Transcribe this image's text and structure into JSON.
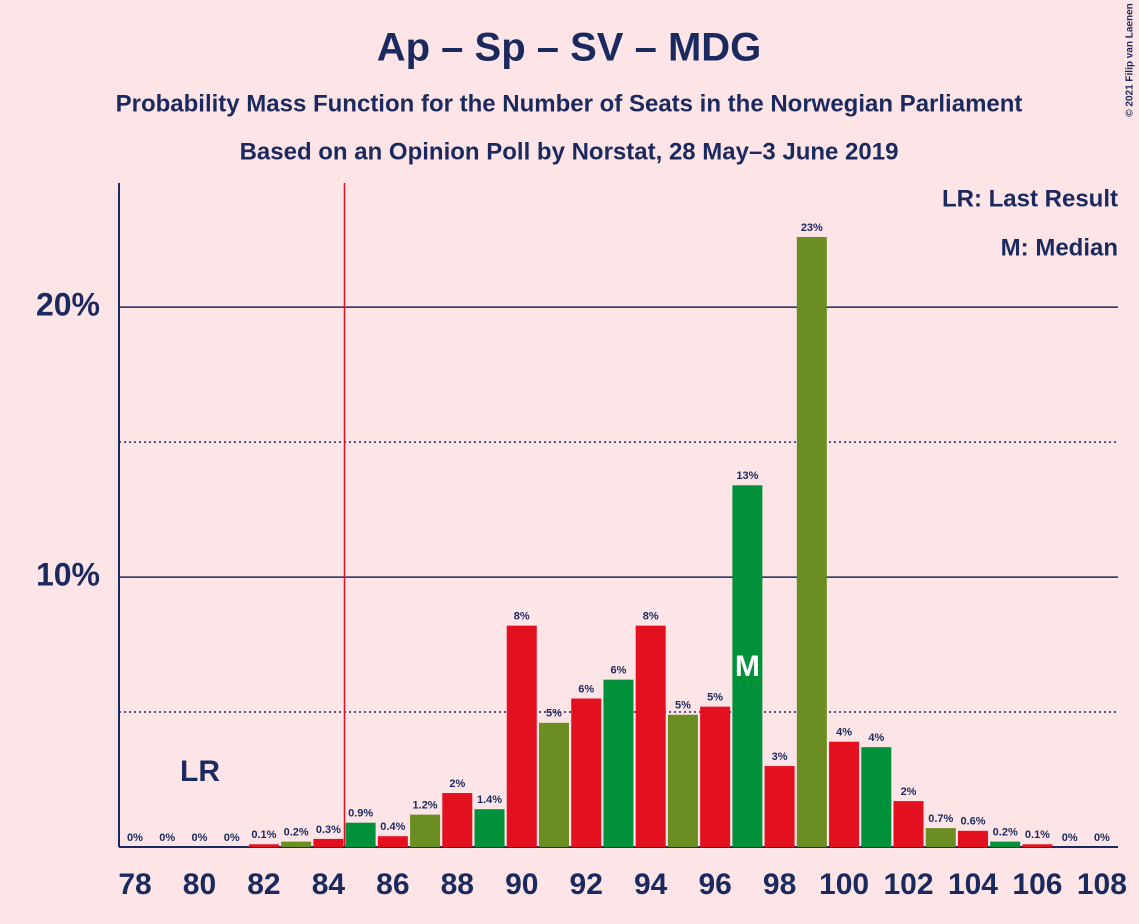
{
  "chart_data": {
    "type": "bar",
    "title": "Ap – Sp – SV – MDG",
    "subtitle": "Probability Mass Function for the Number of Seats in the Norwegian Parliament",
    "subtitle2": "Based on an Opinion Poll by Norstat, 28 May–3 June 2019",
    "copyright": "© 2021 Filip van Laenen",
    "categories": [
      78,
      null,
      80,
      null,
      82,
      null,
      84,
      null,
      86,
      null,
      88,
      null,
      90,
      null,
      92,
      null,
      94,
      null,
      96,
      null,
      98,
      null,
      100,
      null,
      102,
      null,
      104,
      null,
      106,
      null,
      108
    ],
    "values": [
      0,
      0,
      0,
      0,
      0.1,
      0.2,
      0.3,
      0.9,
      0.4,
      1.2,
      2.0,
      1.4,
      8.2,
      4.6,
      5.5,
      6.2,
      8.2,
      4.9,
      5.2,
      13.4,
      3.0,
      22.6,
      3.9,
      3.7,
      1.7,
      0.7,
      0.6,
      0.2,
      0.1,
      0,
      0
    ],
    "value_labels": [
      "0%",
      "0%",
      "0%",
      "0%",
      "0.1%",
      "0.2%",
      "0.3%",
      "0.9%",
      "0.4%",
      "1.2%",
      "2%",
      "1.4%",
      "8%",
      "5%",
      "6%",
      "6%",
      "8%",
      "5%",
      "5%",
      "13%",
      "3%",
      "23%",
      "4%",
      "4%",
      "2%",
      "0.7%",
      "0.6%",
      "0.2%",
      "0.1%",
      "0%",
      "0%"
    ],
    "colors": [
      "#e3101f",
      "#6b8e23",
      "#e3101f",
      "#6b8e23",
      "#e3101f",
      "#6b8e23",
      "#e3101f",
      "#00913a",
      "#e3101f",
      "#6b8e23",
      "#e3101f",
      "#00913a",
      "#e3101f",
      "#6b8e23",
      "#e3101f",
      "#00913a",
      "#e3101f",
      "#6b8e23",
      "#e3101f",
      "#00913a",
      "#e3101f",
      "#6b8e23",
      "#e3101f",
      "#00913a",
      "#e3101f",
      "#6b8e23",
      "#e3101f",
      "#00913a",
      "#e3101f",
      "#6b8e23",
      "#e3101f"
    ],
    "ylim": [
      0,
      24.6
    ],
    "yticks": [
      {
        "value": 10,
        "label": "10%"
      },
      {
        "value": 20,
        "label": "20%"
      }
    ],
    "minor_gridlines": [
      5,
      15
    ],
    "last_result": {
      "label": "LR",
      "seat_index": 7
    },
    "median": {
      "label": "M",
      "seat_index": 19
    },
    "legend": [
      "LR: Last Result",
      "M: Median"
    ]
  }
}
